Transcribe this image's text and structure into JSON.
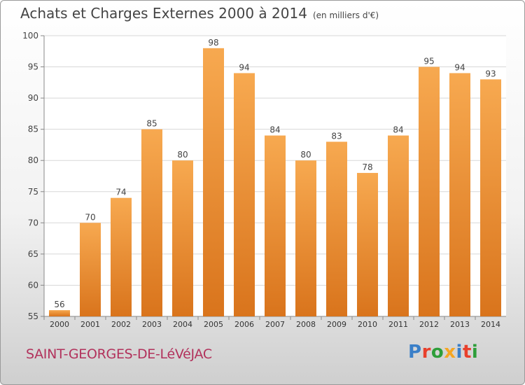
{
  "header": {
    "title": "Achats et Charges Externes 2000 à 2014",
    "unit": "(en milliers d'€)"
  },
  "footer": {
    "location": "SAINT-GEORGES-DE-LéVéJAC",
    "logo": "Proxiti",
    "logo_colors": [
      "#3a7fc8",
      "#e8402c",
      "#2e9e3a",
      "#f5a623",
      "#3a7fc8",
      "#e8402c",
      "#2e9e3a"
    ]
  },
  "colors": {
    "bar_top": "#f7a950",
    "bar_bottom": "#d9741c",
    "grid": "#d8d8d8",
    "axis": "#888888"
  },
  "chart_data": {
    "type": "bar",
    "title": "Achats et Charges Externes 2000 à 2014",
    "subtitle": "(en milliers d'€)",
    "categories": [
      "2000",
      "2001",
      "2002",
      "2003",
      "2004",
      "2005",
      "2006",
      "2007",
      "2008",
      "2009",
      "2010",
      "2011",
      "2012",
      "2013",
      "2014"
    ],
    "values": [
      56,
      70,
      74,
      85,
      80,
      98,
      94,
      84,
      80,
      83,
      78,
      84,
      95,
      94,
      93
    ],
    "ylim": [
      55,
      100
    ],
    "yticks": [
      55,
      60,
      65,
      70,
      75,
      80,
      85,
      90,
      95,
      100
    ],
    "grid": true,
    "xlabel": "",
    "ylabel": ""
  }
}
